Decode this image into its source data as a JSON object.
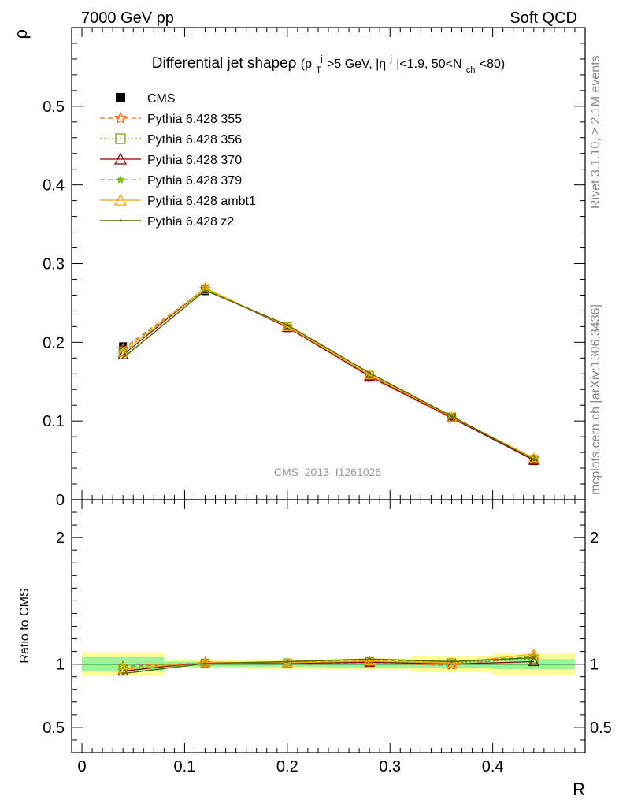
{
  "header": {
    "left": "7000 GeV pp",
    "right": "Soft QCD"
  },
  "title": {
    "main": "Differential jet shapeρ",
    "cond_open": "(p",
    "cond_sub_T": "T",
    "cond_sup_j": "j",
    "cond_pt": ">5 GeV, |η",
    "cond_sup_j2": "j",
    "cond_eta": "|<1.9, 50<N",
    "cond_sub_ch": "ch",
    "cond_close": "<80)"
  },
  "side_labels": {
    "rivet": "Rivet 3.1.10, ≥ 2.1M events",
    "mcplots": "mcplots.cern.ch [arXiv:1306.3436]"
  },
  "watermark": "CMS_2013_I1261026",
  "colors": {
    "cms": "#000000",
    "p355": "#ff6a13",
    "p356": "#6d9b00",
    "p370": "#8b0000",
    "p379": "#7cc000",
    "ambt1": "#ffa500",
    "z2": "#556b00",
    "band_green": "#98f598",
    "band_yellow": "#ffff99"
  },
  "chart_data": {
    "type": "line",
    "x": [
      0.04,
      0.12,
      0.2,
      0.28,
      0.36,
      0.44
    ],
    "x_bin_edges": [
      0.0,
      0.08,
      0.16,
      0.24,
      0.32,
      0.4,
      0.48
    ],
    "xlabel": "R",
    "xlim": [
      -0.01,
      0.49
    ],
    "xticks": [
      0,
      0.1,
      0.2,
      0.3,
      0.4
    ],
    "xtick_labels": [
      "0",
      "0.1",
      "0.2",
      "0.3",
      "0.4"
    ],
    "main_panel": {
      "ylabel": "ρ",
      "ylim": [
        0,
        0.6
      ],
      "yticks": [
        0,
        0.1,
        0.2,
        0.3,
        0.4,
        0.5
      ],
      "ytick_labels": [
        "0",
        "0.1",
        "0.2",
        "0.3",
        "0.4",
        "0.5"
      ]
    },
    "ratio_panel": {
      "ylabel": "Ratio to CMS",
      "ylim": [
        0.3,
        2.3
      ],
      "yticks": [
        0.5,
        1,
        2
      ],
      "ytick_labels": [
        "0.5",
        "1",
        "2"
      ],
      "band_stat": [
        0.055,
        0.02,
        0.02,
        0.025,
        0.03,
        0.04
      ],
      "band_total": [
        0.095,
        0.035,
        0.04,
        0.045,
        0.065,
        0.09
      ]
    },
    "series": [
      {
        "name": "CMS",
        "values": [
          0.195,
          0.265,
          0.218,
          0.155,
          0.104,
          0.049
        ],
        "ratio": [
          1,
          1,
          1,
          1,
          1,
          1
        ]
      },
      {
        "name": "Pythia 6.428 355",
        "values": [
          0.192,
          0.268,
          0.219,
          0.156,
          0.103,
          0.052
        ],
        "ratio": [
          0.985,
          1.01,
          1.005,
          1.005,
          0.99,
          1.06
        ]
      },
      {
        "name": "Pythia 6.428 356",
        "values": [
          0.188,
          0.267,
          0.22,
          0.158,
          0.105,
          0.051
        ],
        "ratio": [
          0.965,
          1.008,
          1.01,
          1.02,
          1.01,
          1.04
        ]
      },
      {
        "name": "Pythia 6.428 370",
        "values": [
          0.184,
          0.269,
          0.219,
          0.157,
          0.104,
          0.05
        ],
        "ratio": [
          0.945,
          1.015,
          1.005,
          1.015,
          1.0,
          1.02
        ]
      },
      {
        "name": "Pythia 6.428 379",
        "values": [
          0.19,
          0.268,
          0.221,
          0.159,
          0.106,
          0.052
        ],
        "ratio": [
          0.975,
          1.01,
          1.015,
          1.03,
          1.02,
          1.06
        ]
      },
      {
        "name": "Pythia 6.428 ambt1",
        "values": [
          0.187,
          0.269,
          0.22,
          0.159,
          0.105,
          0.053
        ],
        "ratio": [
          0.96,
          1.015,
          1.01,
          1.025,
          1.01,
          1.08
        ]
      },
      {
        "name": "Pythia 6.428 z2",
        "values": [
          0.18,
          0.266,
          0.222,
          0.161,
          0.106,
          0.051
        ],
        "ratio": [
          0.925,
          1.005,
          1.02,
          1.04,
          1.02,
          1.05
        ]
      }
    ]
  }
}
